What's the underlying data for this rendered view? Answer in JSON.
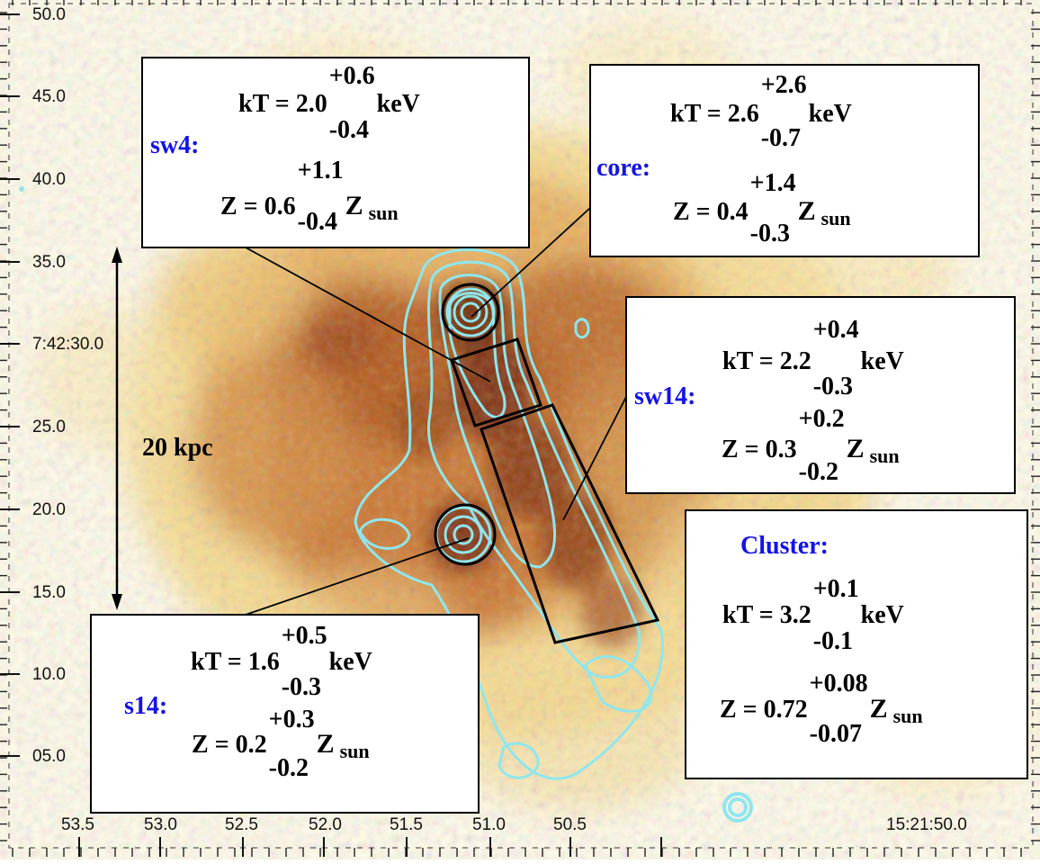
{
  "axes": {
    "dec_ticks": [
      "50.0",
      "45.0",
      "40.0",
      "35.0",
      "7:42:30.0",
      "25.0",
      "20.0",
      "15.0",
      "10.0",
      "05.0"
    ],
    "ra_ticks": [
      "53.5",
      "53.0",
      "52.5",
      "52.0",
      "51.5",
      "51.0",
      "50.5",
      "15:21:50.0"
    ]
  },
  "scale_bar": {
    "label": "20 kpc"
  },
  "colors": {
    "contour": "#8fe6ee",
    "label_blue": "#1414e6",
    "heat_light": "#fff4c4",
    "heat_dark": "#8a3a0c"
  },
  "regions": [
    {
      "id": "sw4",
      "label": "sw4:",
      "kT": {
        "value": "2.0",
        "plus": "+0.6",
        "minus": "-0.4",
        "unit": "keV"
      },
      "Z": {
        "value": "0.6",
        "plus": "+1.1",
        "minus": "-0.4",
        "unit": "Z",
        "unit_sub": "sun"
      }
    },
    {
      "id": "core",
      "label": "core:",
      "kT": {
        "value": "2.6",
        "plus": "+2.6",
        "minus": "-0.7",
        "unit": "keV"
      },
      "Z": {
        "value": "0.4",
        "plus": "+1.4",
        "minus": "-0.3",
        "unit": "Z",
        "unit_sub": "sun"
      }
    },
    {
      "id": "sw14",
      "label": "sw14:",
      "kT": {
        "value": "2.2",
        "plus": "+0.4",
        "minus": "-0.3",
        "unit": "keV"
      },
      "Z": {
        "value": "0.3",
        "plus": "+0.2",
        "minus": "-0.2",
        "unit": "Z",
        "unit_sub": "sun"
      }
    },
    {
      "id": "cluster",
      "label": "Cluster:",
      "kT": {
        "value": "3.2",
        "plus": "+0.1",
        "minus": "-0.1",
        "unit": "keV"
      },
      "Z": {
        "value": "0.72",
        "plus": "+0.08",
        "minus": "-0.07",
        "unit": "Z",
        "unit_sub": "sun"
      }
    },
    {
      "id": "s14",
      "label": "s14:",
      "kT": {
        "value": "1.6",
        "plus": "+0.5",
        "minus": "-0.3",
        "unit": "keV"
      },
      "Z": {
        "value": "0.2",
        "plus": "+0.3",
        "minus": "-0.2",
        "unit": "Z",
        "unit_sub": "sun"
      }
    }
  ],
  "common": {
    "kT_prefix": "kT = ",
    "Z_prefix": "Z = "
  }
}
